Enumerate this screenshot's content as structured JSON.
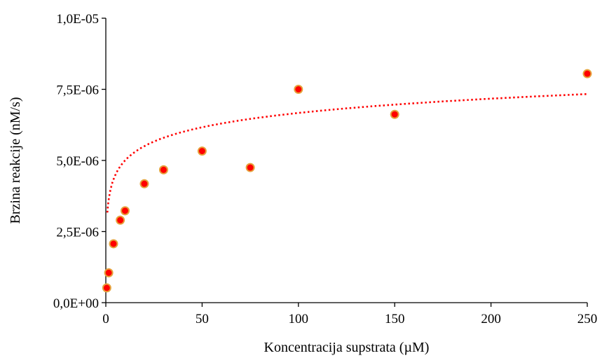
{
  "chart_data": {
    "type": "scatter",
    "xlabel": "Koncentracija supstrata (µM)",
    "ylabel": "Brzina reakcije (nM/s)",
    "xlim": [
      0,
      250
    ],
    "ylim": [
      0,
      1e-05
    ],
    "x_ticks": [
      0,
      50,
      100,
      150,
      200,
      250
    ],
    "x_tick_labels": [
      "0",
      "50",
      "100",
      "150",
      "200",
      "250"
    ],
    "y_ticks": [
      0,
      2.5e-06,
      5e-06,
      7.5e-06,
      1e-05
    ],
    "y_tick_labels": [
      "0,0E+00",
      "2,5E-06",
      "5,0E-06",
      "7,5E-06",
      "1,0E-05"
    ],
    "grid": false,
    "legend": "none",
    "series": [
      {
        "marker_color": "#ff0000",
        "marker_edge_color": "#e6a23c",
        "points": [
          {
            "x": 0.5,
            "y": 5.2e-07
          },
          {
            "x": 1.5,
            "y": 1.05e-06
          },
          {
            "x": 4,
            "y": 2.07e-06
          },
          {
            "x": 7.5,
            "y": 2.9e-06
          },
          {
            "x": 10,
            "y": 3.23e-06
          },
          {
            "x": 20,
            "y": 4.18e-06
          },
          {
            "x": 30,
            "y": 4.67e-06
          },
          {
            "x": 50,
            "y": 5.33e-06
          },
          {
            "x": 75,
            "y": 4.75e-06
          },
          {
            "x": 100,
            "y": 7.5e-06
          },
          {
            "x": 150,
            "y": 6.62e-06
          },
          {
            "x": 250,
            "y": 8.05e-06
          }
        ]
      }
    ],
    "trendline": {
      "type": "logarithmic",
      "color": "#ff0000",
      "style": "dotted",
      "a": 3.33e-06,
      "b": 7.25e-07
    }
  }
}
